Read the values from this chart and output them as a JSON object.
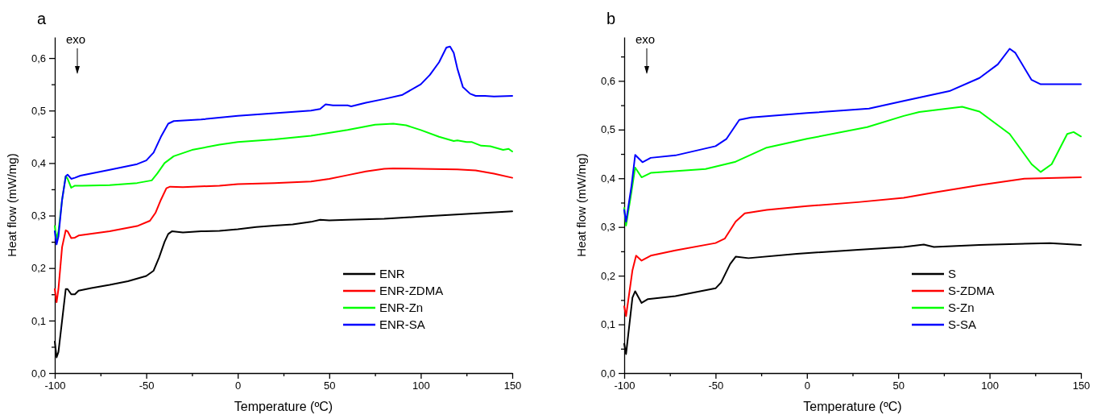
{
  "chart_data": [
    {
      "type": "line",
      "title": "a",
      "xlabel": "Temperature (ºC)",
      "ylabel": "Heat flow (mW/mg)",
      "annotations": [
        "exo"
      ],
      "xlim": [
        -100,
        150
      ],
      "xticks": [
        -100,
        {
          "value": -75,
          "label": null
        },
        -50,
        {
          "value": -25,
          "label": null
        },
        0,
        {
          "value": 25,
          "label": null
        },
        50,
        {
          "value": 75,
          "label": null
        },
        100,
        {
          "value": 125,
          "label": null
        },
        150
      ],
      "ylim": [
        0,
        0.64
      ],
      "yticks": [
        {
          "value": 0,
          "label": "0,0"
        },
        {
          "value": 0.05,
          "label": null
        },
        {
          "value": 0.1,
          "label": "0,1"
        },
        {
          "value": 0.15,
          "label": null
        },
        {
          "value": 0.2,
          "label": "0,2"
        },
        {
          "value": 0.25,
          "label": null
        },
        {
          "value": 0.3,
          "label": "0,3"
        },
        {
          "value": 0.35,
          "label": null
        },
        {
          "value": 0.4,
          "label": "0,4"
        },
        {
          "value": 0.45,
          "label": null
        },
        {
          "value": 0.5,
          "label": "0,5"
        },
        {
          "value": 0.55,
          "label": null
        },
        {
          "value": 0.6,
          "label": "0,6"
        }
      ],
      "grid": false,
      "legend": "bottom right",
      "marker": "none",
      "line_style": "solid",
      "series": [
        {
          "name": "ENR",
          "color": "#000000",
          "x": [
            -100,
            -99,
            -98,
            -96,
            -94,
            -93,
            -91,
            -89,
            -87,
            -80,
            -70,
            -60,
            -50,
            -46,
            -43,
            -40,
            -38,
            -36,
            -30,
            -20,
            -10,
            0,
            10,
            20,
            30,
            40,
            45,
            50,
            60,
            80,
            100,
            125,
            150
          ],
          "values": [
            0.06,
            0.03,
            0.04,
            0.1,
            0.16,
            0.16,
            0.15,
            0.15,
            0.157,
            0.162,
            0.168,
            0.175,
            0.185,
            0.195,
            0.22,
            0.25,
            0.265,
            0.27,
            0.268,
            0.27,
            0.271,
            0.274,
            0.278,
            0.281,
            0.283,
            0.288,
            0.292,
            0.291,
            0.292,
            0.294,
            0.298,
            0.303,
            0.308
          ]
        },
        {
          "name": "ENR-ZDMA",
          "color": "#ff0000",
          "x": [
            -100,
            -99,
            -98,
            -96,
            -94,
            -93,
            -91,
            -89,
            -87,
            -70,
            -55,
            -48,
            -45,
            -42,
            -39,
            -37,
            -30,
            -10,
            0,
            20,
            40,
            50,
            60,
            70,
            80,
            85,
            100,
            120,
            130,
            140,
            150
          ],
          "values": [
            0.16,
            0.135,
            0.16,
            0.24,
            0.272,
            0.27,
            0.257,
            0.258,
            0.262,
            0.27,
            0.28,
            0.29,
            0.305,
            0.33,
            0.352,
            0.355,
            0.354,
            0.357,
            0.36,
            0.362,
            0.365,
            0.37,
            0.377,
            0.384,
            0.389,
            0.39,
            0.389,
            0.388,
            0.386,
            0.38,
            0.372
          ]
        },
        {
          "name": "ENR-Zn",
          "color": "#00ff00",
          "x": [
            -100,
            -99,
            -98,
            -96,
            -94,
            -93,
            -91,
            -89,
            -85,
            -70,
            -55,
            -47,
            -44,
            -40,
            -35,
            -25,
            -10,
            0,
            20,
            40,
            60,
            75,
            85,
            92,
            100,
            110,
            118,
            120,
            125,
            128,
            133,
            138,
            145,
            148,
            150
          ],
          "values": [
            0.28,
            0.255,
            0.27,
            0.33,
            0.375,
            0.37,
            0.353,
            0.357,
            0.357,
            0.358,
            0.362,
            0.367,
            0.38,
            0.4,
            0.413,
            0.425,
            0.435,
            0.44,
            0.445,
            0.452,
            0.463,
            0.473,
            0.475,
            0.472,
            0.463,
            0.45,
            0.442,
            0.443,
            0.44,
            0.44,
            0.433,
            0.432,
            0.425,
            0.427,
            0.422
          ]
        },
        {
          "name": "ENR-SA",
          "color": "#0000ff",
          "x": [
            -100,
            -99,
            -98,
            -96,
            -94,
            -93,
            -91,
            -89,
            -86,
            -70,
            -55,
            -50,
            -46,
            -42,
            -38,
            -35,
            -20,
            0,
            20,
            40,
            45,
            48,
            52,
            60,
            62,
            70,
            80,
            90,
            100,
            105,
            110,
            114,
            116,
            118,
            120,
            123,
            127,
            130,
            135,
            140,
            150
          ],
          "values": [
            0.27,
            0.245,
            0.26,
            0.33,
            0.375,
            0.378,
            0.37,
            0.372,
            0.376,
            0.387,
            0.398,
            0.405,
            0.42,
            0.45,
            0.475,
            0.48,
            0.483,
            0.49,
            0.495,
            0.5,
            0.503,
            0.512,
            0.51,
            0.51,
            0.508,
            0.515,
            0.522,
            0.53,
            0.55,
            0.568,
            0.592,
            0.62,
            0.622,
            0.61,
            0.58,
            0.545,
            0.532,
            0.528,
            0.528,
            0.527,
            0.528
          ]
        }
      ]
    },
    {
      "type": "line",
      "title": "b",
      "xlabel": "Temperature (ºC)",
      "ylabel": "Heat flow (mW/mg)",
      "annotations": [
        "exo"
      ],
      "xlim": [
        -100,
        150
      ],
      "xticks": [
        -100,
        {
          "value": -75,
          "label": null
        },
        -50,
        {
          "value": -25,
          "label": null
        },
        0,
        {
          "value": 25,
          "label": null
        },
        50,
        {
          "value": 75,
          "label": null
        },
        100,
        {
          "value": 125,
          "label": null
        },
        150
      ],
      "ylim": [
        0,
        0.69
      ],
      "yticks": [
        {
          "value": 0,
          "label": "0,0"
        },
        {
          "value": 0.05,
          "label": null
        },
        {
          "value": 0.1,
          "label": "0,1"
        },
        {
          "value": 0.15,
          "label": null
        },
        {
          "value": 0.2,
          "label": "0,2"
        },
        {
          "value": 0.25,
          "label": null
        },
        {
          "value": 0.3,
          "label": "0,3"
        },
        {
          "value": 0.35,
          "label": null
        },
        {
          "value": 0.4,
          "label": "0,4"
        },
        {
          "value": 0.45,
          "label": null
        },
        {
          "value": 0.5,
          "label": "0,5"
        },
        {
          "value": 0.55,
          "label": null
        },
        {
          "value": 0.6,
          "label": "0,6"
        },
        {
          "value": 0.65,
          "label": null
        }
      ],
      "grid": false,
      "legend": "bottom right",
      "marker": "none",
      "line_style": "solid",
      "series": [
        {
          "name": "S",
          "color": "#000000",
          "x": [
            -100,
            -99,
            -95.5,
            -94,
            -90.5,
            -87,
            -72,
            -50,
            -47,
            -42,
            -39,
            -32,
            -5.5,
            28,
            53,
            64,
            69.5,
            94.5,
            133,
            150
          ],
          "values": [
            0.06,
            0.039,
            0.155,
            0.168,
            0.144,
            0.152,
            0.158,
            0.174,
            0.186,
            0.224,
            0.239,
            0.236,
            0.245,
            0.253,
            0.259,
            0.264,
            0.259,
            0.263,
            0.267,
            0.263
          ]
        },
        {
          "name": "S-ZDMA",
          "color": "#ff0000",
          "x": [
            -100,
            -99,
            -95.5,
            -93.5,
            -90.5,
            -85.5,
            -72,
            -50,
            -45,
            -39,
            -34,
            -22,
            0,
            28,
            53,
            70,
            94.5,
            119,
            150
          ],
          "values": [
            0.137,
            0.117,
            0.211,
            0.241,
            0.231,
            0.241,
            0.252,
            0.267,
            0.276,
            0.311,
            0.328,
            0.335,
            0.343,
            0.351,
            0.36,
            0.371,
            0.386,
            0.399,
            0.402
          ]
        },
        {
          "name": "S-Zn",
          "color": "#00ff00",
          "x": [
            -100,
            -99,
            -96,
            -94,
            -90.5,
            -85.5,
            -55.5,
            -39,
            -22,
            0,
            33,
            53,
            61.5,
            85,
            94.5,
            111,
            123,
            128,
            134,
            142.5,
            146,
            150
          ],
          "values": [
            0.339,
            0.303,
            0.373,
            0.422,
            0.402,
            0.411,
            0.419,
            0.434,
            0.463,
            0.481,
            0.505,
            0.528,
            0.536,
            0.547,
            0.537,
            0.491,
            0.429,
            0.413,
            0.429,
            0.491,
            0.495,
            0.486
          ]
        },
        {
          "name": "S-SA",
          "color": "#0000ff",
          "x": [
            -100,
            -99,
            -96,
            -94,
            -90,
            -85.5,
            -72,
            -50,
            -44,
            -37,
            -30.5,
            0,
            34,
            53,
            78,
            94.5,
            104.5,
            111,
            114,
            123,
            128,
            150
          ],
          "values": [
            0.335,
            0.311,
            0.385,
            0.448,
            0.433,
            0.442,
            0.447,
            0.466,
            0.481,
            0.52,
            0.525,
            0.534,
            0.543,
            0.559,
            0.579,
            0.606,
            0.634,
            0.666,
            0.658,
            0.602,
            0.593,
            0.593
          ]
        }
      ]
    }
  ]
}
